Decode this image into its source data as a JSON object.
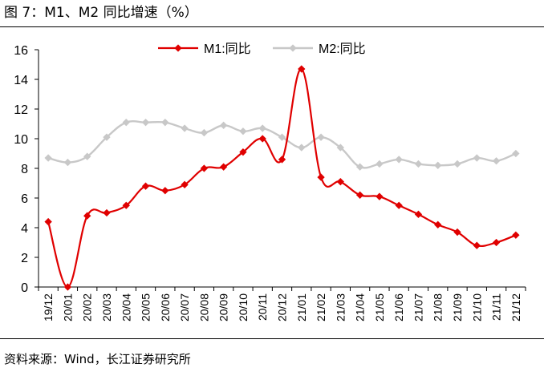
{
  "figure": {
    "title": "图 7：M1、M2 同比增速（%）",
    "source": "资料来源：Wind，长江证券研究所"
  },
  "chart_data": {
    "type": "line",
    "title": "M1、M2 同比增速（%）",
    "xlabel": "",
    "ylabel": "",
    "ylim": [
      0,
      16
    ],
    "yticks": [
      0,
      2,
      4,
      6,
      8,
      10,
      12,
      14,
      16
    ],
    "categories": [
      "19/12",
      "20/01",
      "20/02",
      "20/03",
      "20/04",
      "20/05",
      "20/06",
      "20/07",
      "20/08",
      "20/09",
      "20/10",
      "20/11",
      "20/12",
      "21/01",
      "21/02",
      "21/03",
      "21/04",
      "21/05",
      "21/06",
      "21/07",
      "21/08",
      "21/09",
      "21/10",
      "21/11",
      "21/12"
    ],
    "legend_position": "top",
    "series": [
      {
        "name": "M1:同比",
        "color": "#e00000",
        "values": [
          4.4,
          0.0,
          4.8,
          5.0,
          5.5,
          6.8,
          6.5,
          6.9,
          8.0,
          8.1,
          9.1,
          10.0,
          8.6,
          14.7,
          7.4,
          7.1,
          6.2,
          6.1,
          5.5,
          4.9,
          4.2,
          3.7,
          2.8,
          3.0,
          3.5
        ]
      },
      {
        "name": "M2:同比",
        "color": "#c8c8c8",
        "values": [
          8.7,
          8.4,
          8.8,
          10.1,
          11.1,
          11.1,
          11.1,
          10.7,
          10.4,
          10.9,
          10.5,
          10.7,
          10.1,
          9.4,
          10.1,
          9.4,
          8.1,
          8.3,
          8.6,
          8.3,
          8.2,
          8.3,
          8.7,
          8.5,
          9.0
        ]
      }
    ]
  }
}
